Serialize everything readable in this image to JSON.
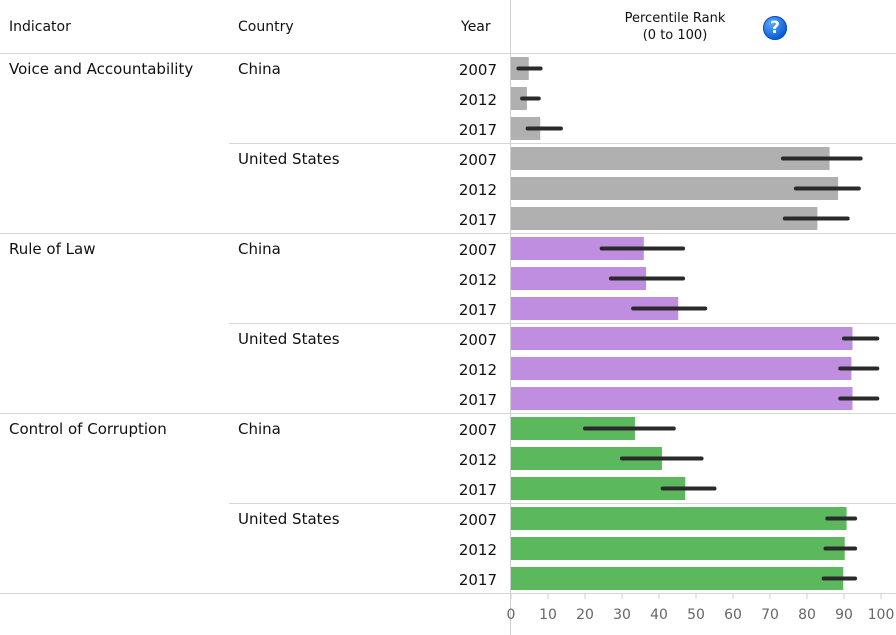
{
  "header": {
    "indicator": "Indicator",
    "country": "Country",
    "year": "Year",
    "pr_line1": "Percentile Rank",
    "pr_line2": "(0 to 100)",
    "help_glyph": "?"
  },
  "chart_data": {
    "type": "bar",
    "orientation": "horizontal",
    "xlim": [
      0,
      100
    ],
    "xticks": [
      0,
      10,
      20,
      30,
      40,
      50,
      60,
      70,
      80,
      90,
      100
    ],
    "colors": {
      "Voice and Accountability": "#b0b0b0",
      "Rule of Law": "#c08ee0",
      "Control of Corruption": "#5cb85c"
    },
    "error_color": "#2a2a2a",
    "groups": [
      {
        "indicator": "Voice and Accountability",
        "countries": [
          {
            "country": "China",
            "rows": [
              {
                "year": "2007",
                "value": 4.8,
                "lo": 2.0,
                "hi": 8.0
              },
              {
                "year": "2012",
                "value": 4.3,
                "lo": 3.0,
                "hi": 7.5
              },
              {
                "year": "2017",
                "value": 7.9,
                "lo": 4.5,
                "hi": 13.5
              }
            ]
          },
          {
            "country": "United States",
            "rows": [
              {
                "year": "2007",
                "value": 86.1,
                "lo": 73.5,
                "hi": 94.5
              },
              {
                "year": "2012",
                "value": 88.4,
                "lo": 77.0,
                "hi": 94.0
              },
              {
                "year": "2017",
                "value": 82.8,
                "lo": 74.0,
                "hi": 91.0
              }
            ]
          }
        ]
      },
      {
        "indicator": "Rule of Law",
        "countries": [
          {
            "country": "China",
            "rows": [
              {
                "year": "2007",
                "value": 35.9,
                "lo": 24.5,
                "hi": 46.5
              },
              {
                "year": "2012",
                "value": 36.5,
                "lo": 27.0,
                "hi": 46.5
              },
              {
                "year": "2017",
                "value": 45.2,
                "lo": 33.0,
                "hi": 52.5
              }
            ]
          },
          {
            "country": "United States",
            "rows": [
              {
                "year": "2007",
                "value": 92.3,
                "lo": 90.0,
                "hi": 99.0
              },
              {
                "year": "2012",
                "value": 92.0,
                "lo": 89.0,
                "hi": 99.0
              },
              {
                "year": "2017",
                "value": 92.3,
                "lo": 89.0,
                "hi": 99.0
              }
            ]
          }
        ]
      },
      {
        "indicator": "Control of Corruption",
        "countries": [
          {
            "country": "China",
            "rows": [
              {
                "year": "2007",
                "value": 33.5,
                "lo": 20.0,
                "hi": 44.0
              },
              {
                "year": "2012",
                "value": 40.8,
                "lo": 30.0,
                "hi": 51.5
              },
              {
                "year": "2017",
                "value": 47.1,
                "lo": 41.0,
                "hi": 55.0
              }
            ]
          },
          {
            "country": "United States",
            "rows": [
              {
                "year": "2007",
                "value": 90.7,
                "lo": 85.5,
                "hi": 93.0
              },
              {
                "year": "2012",
                "value": 90.2,
                "lo": 85.0,
                "hi": 93.0
              },
              {
                "year": "2017",
                "value": 89.8,
                "lo": 84.5,
                "hi": 93.0
              }
            ]
          }
        ]
      }
    ]
  }
}
